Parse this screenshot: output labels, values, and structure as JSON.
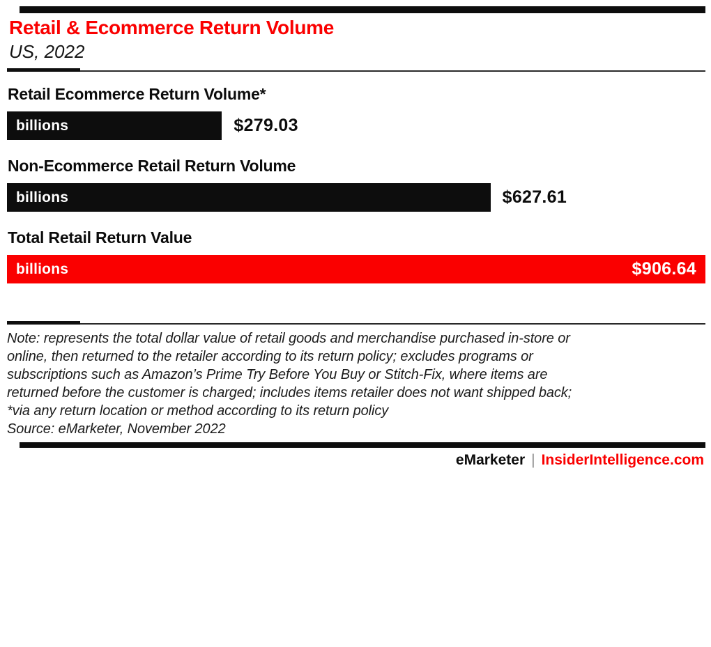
{
  "header": {
    "title": "Retail & Ecommerce Return Volume",
    "subtitle": "US, 2022"
  },
  "chart_data": {
    "type": "bar",
    "orientation": "horizontal",
    "title": "Retail & Ecommerce Return Volume",
    "subtitle": "US, 2022",
    "unit_label": "billions",
    "value_prefix": "$",
    "categories": [
      "Retail Ecommerce Return Volume*",
      "Non-Ecommerce Retail Return Volume",
      "Total Retail Return Value"
    ],
    "values": [
      279.03,
      627.61,
      906.64
    ],
    "value_labels": [
      "$279.03",
      "$627.61",
      "$906.64"
    ],
    "bar_colors": [
      "#0d0d0d",
      "#0d0d0d",
      "#fa0000"
    ],
    "value_label_position": [
      "outside",
      "outside",
      "inside"
    ],
    "xlim": [
      0,
      906.64
    ],
    "xlabel": "",
    "ylabel": "",
    "grid": false,
    "legend": false
  },
  "note": {
    "lines": [
      "Note: represents the total dollar value of retail goods and merchandise purchased in-store or",
      "online, then returned to the retailer according to its return policy; excludes programs or",
      "subscriptions such as Amazon’s Prime Try Before You Buy or Stitch-Fix, where items are",
      "returned before the customer is charged; includes items retailer does not want shipped back;",
      "*via any return location or method according to its return policy"
    ],
    "source": "Source: eMarketer, November 2022"
  },
  "footer": {
    "brand_left": "eMarketer",
    "separator": "|",
    "brand_right": "InsiderIntelligence.com"
  },
  "colors": {
    "accent_red": "#fa0000",
    "bar_black": "#0d0d0d",
    "text_black": "#0c0c0c",
    "separator_gray": "#8c8c8c",
    "background": "#ffffff"
  }
}
